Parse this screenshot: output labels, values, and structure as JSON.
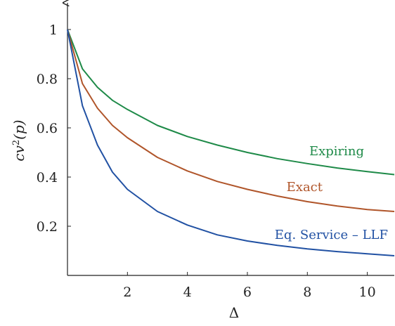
{
  "chart_data": {
    "type": "line",
    "title": "",
    "xlabel": "Δ",
    "ylabel": "cv²(p)",
    "ylabel_parts": {
      "base": "cv",
      "sup": "2",
      "rest": "(p)"
    },
    "xlim": [
      0,
      10.9
    ],
    "ylim": [
      0,
      1.08
    ],
    "xticks": [
      2,
      4,
      6,
      8,
      10
    ],
    "yticks": [
      0.2,
      0.4,
      0.6,
      0.8,
      1
    ],
    "xtick_labels": [
      "2",
      "4",
      "6",
      "8",
      "10"
    ],
    "ytick_labels": [
      "0.2",
      "0.4",
      "0.6",
      "0.8",
      "1"
    ],
    "grid": false,
    "legend": "inline labels",
    "series": [
      {
        "name": "Expiring",
        "color": "#1e8a48",
        "x": [
          0,
          0.5,
          1,
          1.5,
          2,
          3,
          4,
          5,
          6,
          7,
          8,
          9,
          10,
          10.9
        ],
        "y": [
          1.0,
          0.84,
          0.765,
          0.712,
          0.675,
          0.61,
          0.565,
          0.53,
          0.5,
          0.475,
          0.455,
          0.437,
          0.422,
          0.41
        ]
      },
      {
        "name": "Exact",
        "color": "#b0552a",
        "x": [
          0,
          0.5,
          1,
          1.5,
          2,
          3,
          4,
          5,
          6,
          7,
          8,
          9,
          10,
          10.9
        ],
        "y": [
          1.0,
          0.78,
          0.68,
          0.61,
          0.56,
          0.48,
          0.425,
          0.382,
          0.35,
          0.323,
          0.3,
          0.282,
          0.268,
          0.26
        ]
      },
      {
        "name": "Eq. Service – LLF",
        "color": "#2151a3",
        "x": [
          0,
          0.5,
          1,
          1.5,
          2,
          3,
          4,
          5,
          6,
          7,
          8,
          9,
          10,
          10.9
        ],
        "y": [
          1.0,
          0.69,
          0.53,
          0.42,
          0.35,
          0.26,
          0.205,
          0.165,
          0.14,
          0.122,
          0.108,
          0.097,
          0.088,
          0.08
        ]
      }
    ]
  }
}
